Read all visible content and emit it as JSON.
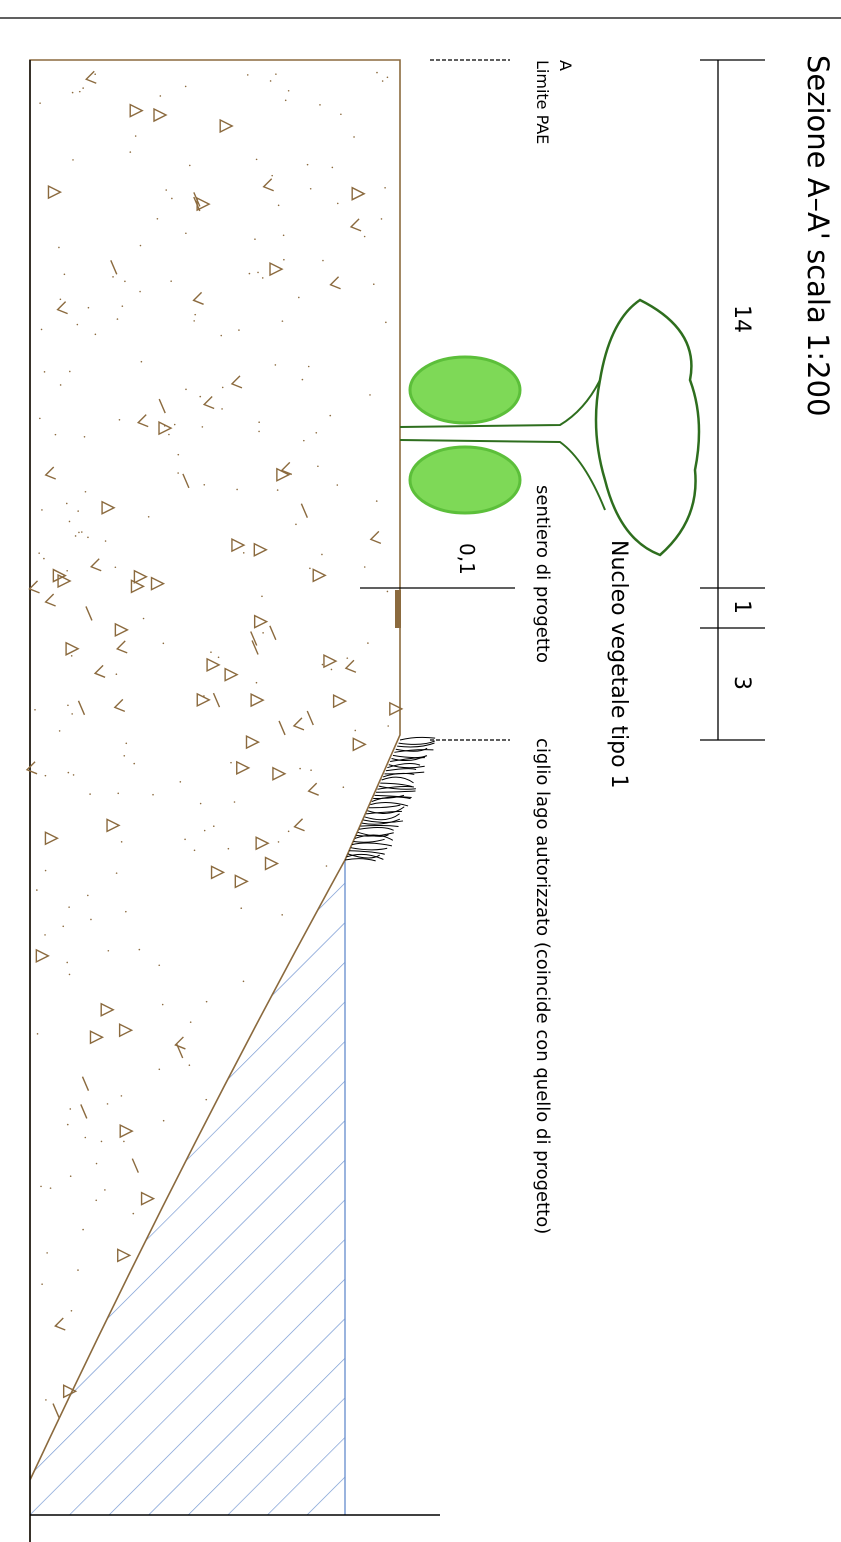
{
  "title": "Sezione A–A' scala 1:200",
  "dimensions": {
    "total": "14",
    "path": "1",
    "edge": "3",
    "path_width": "0,1"
  },
  "labels": {
    "vegetation": "Nucleo vegetale tipo 1",
    "path": "sentiero di progetto",
    "lake_edge": "ciglio lago autorizzato (coincide con quello di progetto)",
    "section_mark": "A",
    "limit": "Limite PAE"
  }
}
